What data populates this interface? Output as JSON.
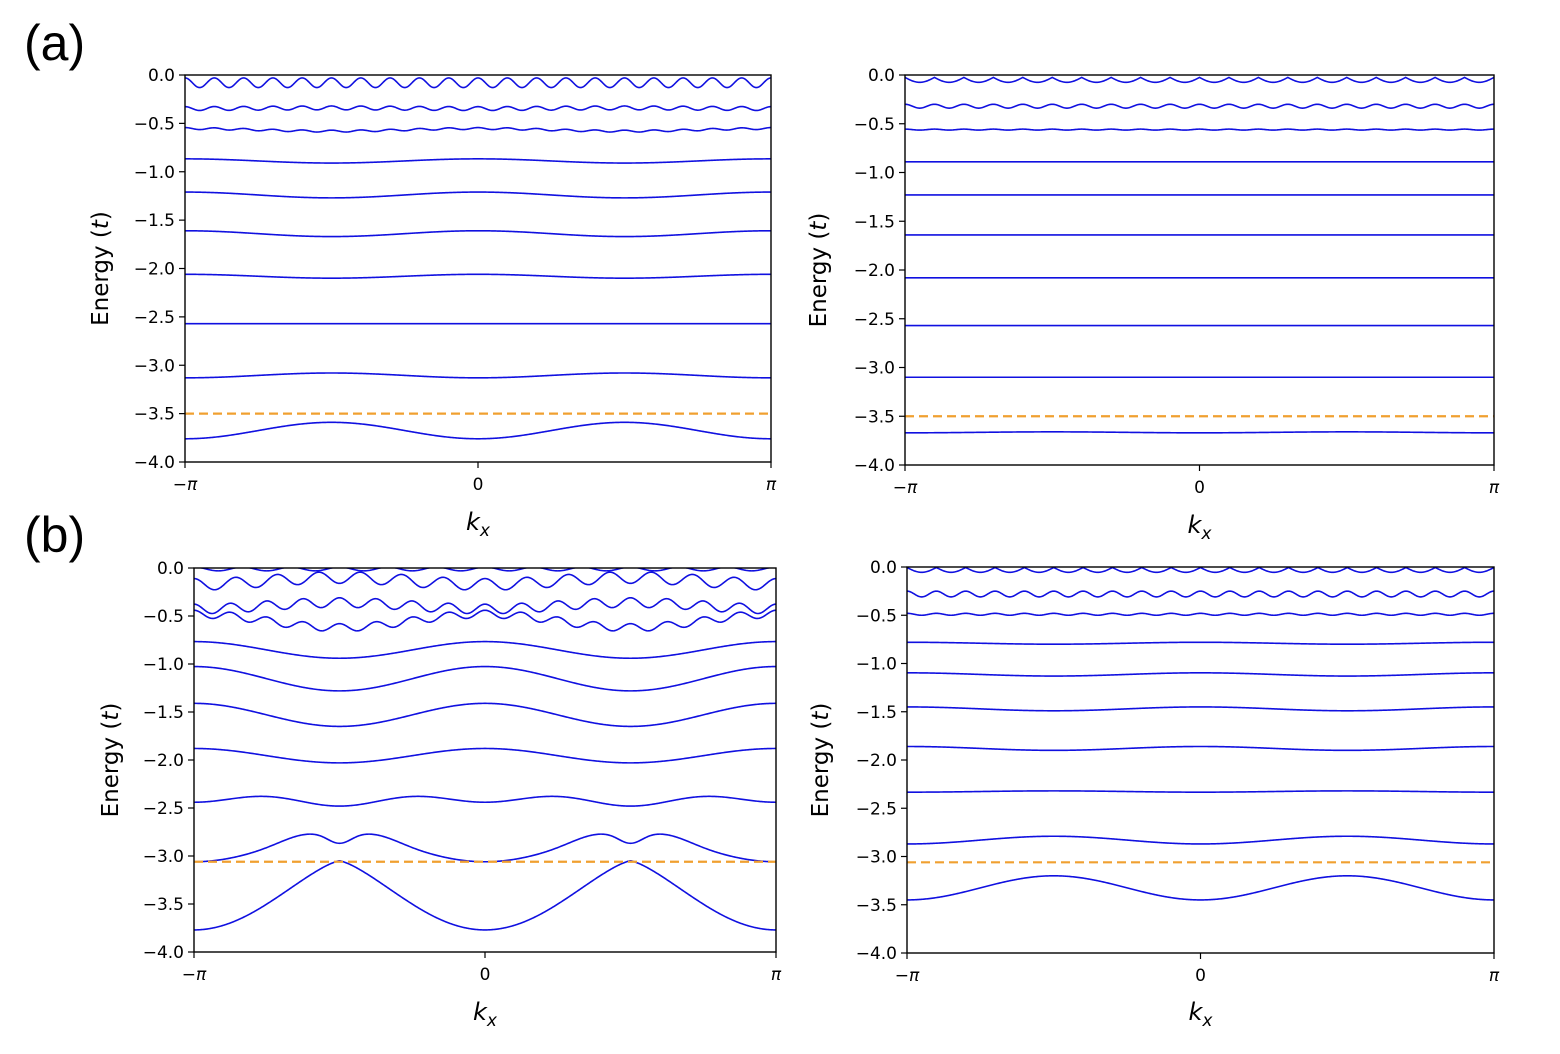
{
  "figure": {
    "panels": [
      {
        "label": "(a)"
      },
      {
        "label": "(b)"
      }
    ]
  },
  "colors": {
    "band": "#1010e0",
    "fermi_line": "#f0a030",
    "axis": "#000000",
    "background": "#ffffff"
  },
  "chart_data": [
    {
      "id": "a-left",
      "panel": "(a)",
      "type": "line",
      "title": "",
      "xlabel": "k_x",
      "ylabel": "Energy (t)",
      "xlim": [
        -3.14159,
        3.14159
      ],
      "ylim": [
        -4.0,
        0.0
      ],
      "xticks": [
        {
          "value": -3.14159,
          "label": "−π"
        },
        {
          "value": 0,
          "label": "0"
        },
        {
          "value": 3.14159,
          "label": "π"
        }
      ],
      "yticks": [
        {
          "value": 0.0,
          "label": "0.0"
        },
        {
          "value": -0.5,
          "label": "−0.5"
        },
        {
          "value": -1.0,
          "label": "−1.0"
        },
        {
          "value": -1.5,
          "label": "−1.5"
        },
        {
          "value": -2.0,
          "label": "−2.0"
        },
        {
          "value": -2.5,
          "label": "−2.5"
        },
        {
          "value": -3.0,
          "label": "−3.0"
        },
        {
          "value": -3.5,
          "label": "−3.5"
        },
        {
          "value": -4.0,
          "label": "−4.0"
        }
      ],
      "grid": false,
      "fermi_level": -3.5,
      "x_samples": [
        "-π",
        "-π/2",
        "0",
        "π/2",
        "π"
      ],
      "series": [
        {
          "name": "band 1",
          "values": [
            -0.08,
            -0.08,
            -0.08,
            -0.08,
            -0.08
          ],
          "oscillation": {
            "amplitude": 0.05,
            "periods": 20
          }
        },
        {
          "name": "band 2",
          "values": [
            -0.35,
            -0.34,
            -0.34,
            -0.34,
            -0.35
          ],
          "oscillation": {
            "amplitude": 0.02,
            "periods": 20
          }
        },
        {
          "name": "band 3",
          "values": [
            -0.55,
            -0.58,
            -0.56,
            -0.58,
            -0.55
          ],
          "oscillation": {
            "amplitude": 0.01,
            "periods": 20
          }
        },
        {
          "name": "band 4",
          "values": [
            -0.87,
            -0.91,
            -0.86,
            -0.91,
            -0.87
          ]
        },
        {
          "name": "band 5",
          "values": [
            -1.21,
            -1.27,
            -1.21,
            -1.27,
            -1.21
          ]
        },
        {
          "name": "band 6",
          "values": [
            -1.61,
            -1.67,
            -1.61,
            -1.67,
            -1.61
          ]
        },
        {
          "name": "band 7",
          "values": [
            -2.06,
            -2.1,
            -2.06,
            -2.1,
            -2.06
          ]
        },
        {
          "name": "band 8",
          "values": [
            -2.57,
            -2.57,
            -2.57,
            -2.57,
            -2.57
          ]
        },
        {
          "name": "band 9",
          "values": [
            -3.13,
            -3.08,
            -3.13,
            -3.08,
            -3.13
          ]
        },
        {
          "name": "band 10",
          "values": [
            -3.76,
            -3.59,
            -3.76,
            -3.59,
            -3.76
          ]
        }
      ]
    },
    {
      "id": "a-right",
      "panel": "(a)",
      "type": "line",
      "title": "",
      "xlabel": "k_x",
      "ylabel": "Energy (t)",
      "xlim": [
        -3.14159,
        3.14159
      ],
      "ylim": [
        -4.0,
        0.0
      ],
      "xticks": [
        {
          "value": -3.14159,
          "label": "−π"
        },
        {
          "value": 0,
          "label": "0"
        },
        {
          "value": 3.14159,
          "label": "π"
        }
      ],
      "yticks": [
        {
          "value": 0.0,
          "label": "0.0"
        },
        {
          "value": -0.5,
          "label": "−0.5"
        },
        {
          "value": -1.0,
          "label": "−1.0"
        },
        {
          "value": -1.5,
          "label": "−1.5"
        },
        {
          "value": -2.0,
          "label": "−2.0"
        },
        {
          "value": -2.5,
          "label": "−2.5"
        },
        {
          "value": -3.0,
          "label": "−3.0"
        },
        {
          "value": -3.5,
          "label": "−3.5"
        },
        {
          "value": -4.0,
          "label": "−4.0"
        }
      ],
      "grid": false,
      "fermi_level": -3.5,
      "x_samples": [
        "-π",
        "-π/2",
        "0",
        "π/2",
        "π"
      ],
      "series": [
        {
          "name": "band 1",
          "values": [
            -0.05,
            -0.05,
            -0.05,
            -0.05,
            -0.05
          ],
          "oscillation": {
            "amplitude": 0.05,
            "periods": 20,
            "shape": "scallop"
          }
        },
        {
          "name": "band 2",
          "values": [
            -0.32,
            -0.32,
            -0.32,
            -0.32,
            -0.32
          ],
          "oscillation": {
            "amplitude": 0.02,
            "periods": 20
          }
        },
        {
          "name": "band 3",
          "values": [
            -0.56,
            -0.56,
            -0.56,
            -0.56,
            -0.56
          ],
          "oscillation": {
            "amplitude": 0.005,
            "periods": 20
          }
        },
        {
          "name": "band 4",
          "values": [
            -0.89,
            -0.89,
            -0.89,
            -0.89,
            -0.89
          ]
        },
        {
          "name": "band 5",
          "values": [
            -1.23,
            -1.23,
            -1.23,
            -1.23,
            -1.23
          ]
        },
        {
          "name": "band 6",
          "values": [
            -1.64,
            -1.64,
            -1.64,
            -1.64,
            -1.64
          ]
        },
        {
          "name": "band 7",
          "values": [
            -2.08,
            -2.08,
            -2.08,
            -2.08,
            -2.08
          ]
        },
        {
          "name": "band 8",
          "values": [
            -2.57,
            -2.57,
            -2.57,
            -2.57,
            -2.57
          ]
        },
        {
          "name": "band 9",
          "values": [
            -3.1,
            -3.1,
            -3.1,
            -3.1,
            -3.1
          ]
        },
        {
          "name": "band 10",
          "values": [
            -3.67,
            -3.66,
            -3.67,
            -3.66,
            -3.67
          ]
        }
      ]
    },
    {
      "id": "b-left",
      "panel": "(b)",
      "type": "line",
      "title": "",
      "xlabel": "k_x",
      "ylabel": "Energy (t)",
      "xlim": [
        -3.14159,
        3.14159
      ],
      "ylim": [
        -4.0,
        0.0
      ],
      "xticks": [
        {
          "value": -3.14159,
          "label": "−π"
        },
        {
          "value": 0,
          "label": "0"
        },
        {
          "value": 3.14159,
          "label": "π"
        }
      ],
      "yticks": [
        {
          "value": 0.0,
          "label": "0.0"
        },
        {
          "value": -0.5,
          "label": "−0.5"
        },
        {
          "value": -1.0,
          "label": "−1.0"
        },
        {
          "value": -1.5,
          "label": "−1.5"
        },
        {
          "value": -2.0,
          "label": "−2.0"
        },
        {
          "value": -2.5,
          "label": "−2.5"
        },
        {
          "value": -3.0,
          "label": "−3.0"
        },
        {
          "value": -3.5,
          "label": "−3.5"
        },
        {
          "value": -4.0,
          "label": "−4.0"
        }
      ],
      "grid": false,
      "fermi_level": -3.06,
      "x_samples": [
        "-π",
        "-π/2",
        "0",
        "π/2",
        "π"
      ],
      "series": [
        {
          "name": "band 1",
          "values": [
            -0.01,
            -0.01,
            -0.01,
            -0.01,
            -0.01
          ],
          "oscillation": {
            "amplitude": 0.02,
            "periods": 12
          }
        },
        {
          "name": "band 2",
          "values": [
            -0.18,
            -0.1,
            -0.15,
            -0.1,
            -0.18
          ],
          "oscillation": {
            "amplitude": 0.06,
            "periods": 14
          }
        },
        {
          "name": "band 3",
          "values": [
            -0.43,
            -0.36,
            -0.42,
            -0.36,
            -0.43
          ],
          "oscillation": {
            "amplitude": 0.05,
            "periods": 16
          }
        },
        {
          "name": "band 4",
          "values": [
            -0.48,
            -0.62,
            -0.48,
            -0.62,
            -0.48
          ],
          "oscillation": {
            "amplitude": 0.04,
            "periods": 16
          }
        },
        {
          "name": "band 5",
          "values": [
            -0.77,
            -0.94,
            -0.76,
            -0.94,
            -0.77
          ]
        },
        {
          "name": "band 6",
          "values": [
            -1.03,
            -1.28,
            -1.02,
            -1.28,
            -1.03
          ]
        },
        {
          "name": "band 7",
          "values": [
            -1.41,
            -1.65,
            -1.41,
            -1.65,
            -1.41
          ]
        },
        {
          "name": "band 8",
          "values": [
            -1.88,
            -2.03,
            -1.88,
            -2.03,
            -1.88
          ]
        },
        {
          "name": "band 9",
          "values": [
            -2.43,
            -2.41,
            -2.43,
            -2.41,
            -2.43
          ]
        },
        {
          "name": "band 10",
          "values": [
            -3.06,
            -2.82,
            -3.06,
            -2.82,
            -3.06
          ],
          "peaks": [
            {
              "x": "-0.6π",
              "y": -2.73
            },
            {
              "x": "-0.4π",
              "y": -2.73
            },
            {
              "x": "0.4π",
              "y": -2.73
            },
            {
              "x": "0.6π",
              "y": -2.73
            }
          ]
        },
        {
          "name": "band 11",
          "values": [
            -3.77,
            -3.05,
            -3.77,
            -3.05,
            -3.77
          ]
        }
      ]
    },
    {
      "id": "b-right",
      "panel": "(b)",
      "type": "line",
      "title": "",
      "xlabel": "k_x",
      "ylabel": "Energy (t)",
      "xlim": [
        -3.14159,
        3.14159
      ],
      "ylim": [
        -4.0,
        0.0
      ],
      "xticks": [
        {
          "value": -3.14159,
          "label": "−π"
        },
        {
          "value": 0,
          "label": "0"
        },
        {
          "value": 3.14159,
          "label": "π"
        }
      ],
      "yticks": [
        {
          "value": 0.0,
          "label": "0.0"
        },
        {
          "value": -0.5,
          "label": "−0.5"
        },
        {
          "value": -1.0,
          "label": "−1.0"
        },
        {
          "value": -1.5,
          "label": "−1.5"
        },
        {
          "value": -2.0,
          "label": "−2.0"
        },
        {
          "value": -2.5,
          "label": "−2.5"
        },
        {
          "value": -3.0,
          "label": "−3.0"
        },
        {
          "value": -3.5,
          "label": "−3.5"
        },
        {
          "value": -4.0,
          "label": "−4.0"
        }
      ],
      "grid": false,
      "fermi_level": -3.06,
      "x_samples": [
        "-π",
        "-π/2",
        "0",
        "π/2",
        "π"
      ],
      "series": [
        {
          "name": "band 1",
          "values": [
            -0.03,
            -0.03,
            -0.03,
            -0.03,
            -0.03
          ],
          "oscillation": {
            "amplitude": 0.05,
            "periods": 20,
            "shape": "scallop"
          }
        },
        {
          "name": "band 2",
          "values": [
            -0.28,
            -0.28,
            -0.28,
            -0.28,
            -0.28
          ],
          "oscillation": {
            "amplitude": 0.03,
            "periods": 20
          }
        },
        {
          "name": "band 3",
          "values": [
            -0.49,
            -0.49,
            -0.49,
            -0.49,
            -0.49
          ],
          "oscillation": {
            "amplitude": 0.01,
            "periods": 20
          }
        },
        {
          "name": "band 4",
          "values": [
            -0.78,
            -0.8,
            -0.78,
            -0.8,
            -0.78
          ]
        },
        {
          "name": "band 5",
          "values": [
            -1.1,
            -1.13,
            -1.09,
            -1.13,
            -1.1
          ]
        },
        {
          "name": "band 6",
          "values": [
            -1.45,
            -1.49,
            -1.45,
            -1.49,
            -1.45
          ]
        },
        {
          "name": "band 7",
          "values": [
            -1.86,
            -1.9,
            -1.86,
            -1.9,
            -1.86
          ]
        },
        {
          "name": "band 8",
          "values": [
            -2.33,
            -2.32,
            -2.34,
            -2.32,
            -2.33
          ]
        },
        {
          "name": "band 9",
          "values": [
            -2.87,
            -2.79,
            -2.87,
            -2.79,
            -2.87
          ]
        },
        {
          "name": "band 10",
          "values": [
            -3.45,
            -3.2,
            -3.45,
            -3.2,
            -3.45
          ]
        }
      ]
    }
  ]
}
